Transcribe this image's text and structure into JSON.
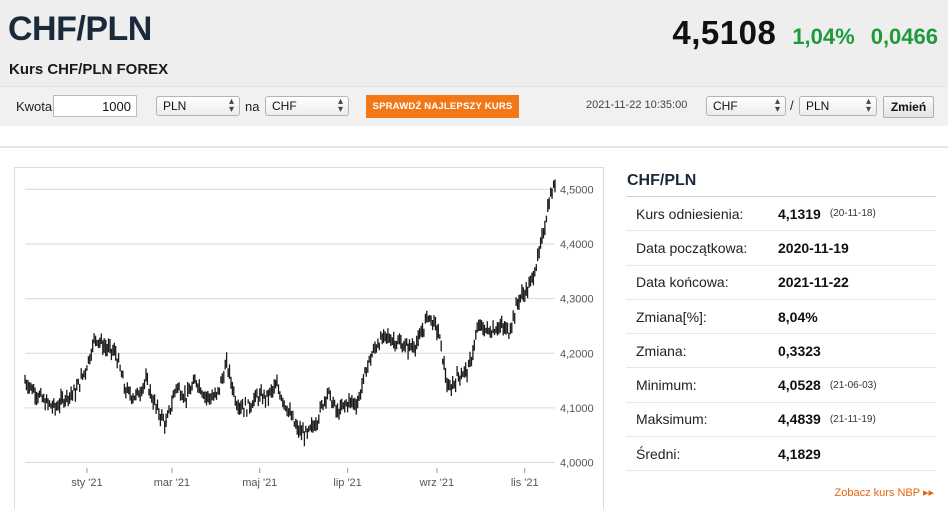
{
  "header": {
    "pair": "CHF/PLN",
    "subtitle": "Kurs CHF/PLN FOREX",
    "rate": "4,5108",
    "change_pct": "1,04%",
    "change_abs": "0,0466"
  },
  "converter": {
    "amount_label": "Kwota",
    "amount_value": "1000",
    "from_currency": "PLN",
    "na_label": "na",
    "to_currency": "CHF",
    "best_rate_button": "SPRAWDŹ NAJLEPSZY KURS",
    "timestamp": "2021-11-22 10:35:00",
    "pair_base": "CHF",
    "pair_sep": "/",
    "pair_quote": "PLN",
    "change_button": "Zmień"
  },
  "stats": {
    "title": "CHF/PLN",
    "rows": [
      {
        "label": "Kurs odniesienia:",
        "value": "4,1319",
        "date": "(20-11-18)"
      },
      {
        "label": "Data początkowa:",
        "value": "2020-11-19",
        "date": ""
      },
      {
        "label": "Data końcowa:",
        "value": "2021-11-22",
        "date": ""
      },
      {
        "label": "Zmiana[%]:",
        "value": "8,04%",
        "date": ""
      },
      {
        "label": "Zmiana:",
        "value": "0,3323",
        "date": ""
      },
      {
        "label": "Minimum:",
        "value": "4,0528",
        "date": "(21-06-03)"
      },
      {
        "label": "Maksimum:",
        "value": "4,4839",
        "date": "(21-11-19)"
      },
      {
        "label": "Średni:",
        "value": "4,1829",
        "date": ""
      }
    ],
    "nbp_link": "Zobacz kurs NBP ▸▸"
  },
  "colors": {
    "accent_orange": "#f07818",
    "positive_green": "#1e9a3c",
    "title_navy": "#1a2a3a"
  },
  "chart_data": {
    "type": "line",
    "subtype": "candlestick",
    "x_tick_labels": [
      "sty '21",
      "mar '21",
      "maj '21",
      "lip '21",
      "wrz '21",
      "lis '21"
    ],
    "x_tick_dates": [
      "2021-01-01",
      "2021-03-01",
      "2021-05-01",
      "2021-07-01",
      "2021-09-01",
      "2021-11-01"
    ],
    "y_tick_labels": [
      "4,0000",
      "4,1000",
      "4,2000",
      "4,3000",
      "4,4000",
      "4,5000"
    ],
    "y_ticks": [
      4.0,
      4.1,
      4.2,
      4.3,
      4.4,
      4.5
    ],
    "ylim": [
      3.99,
      4.53
    ],
    "xlim": [
      "2020-11-19",
      "2021-11-22"
    ],
    "grid": true,
    "series": [
      {
        "x": [
          "2020-11-19",
          "2020-11-26",
          "2020-12-03",
          "2020-12-10",
          "2020-12-17",
          "2020-12-24",
          "2020-12-31",
          "2021-01-07",
          "2021-01-14",
          "2021-01-21",
          "2021-01-28",
          "2021-02-04",
          "2021-02-11",
          "2021-02-18",
          "2021-02-25",
          "2021-03-04",
          "2021-03-11",
          "2021-03-18",
          "2021-03-25",
          "2021-04-01",
          "2021-04-08",
          "2021-04-15",
          "2021-04-22",
          "2021-04-29",
          "2021-05-06",
          "2021-05-13",
          "2021-05-20",
          "2021-05-27",
          "2021-06-03",
          "2021-06-10",
          "2021-06-17",
          "2021-06-24",
          "2021-07-01",
          "2021-07-08",
          "2021-07-15",
          "2021-07-22",
          "2021-07-29",
          "2021-08-05",
          "2021-08-12",
          "2021-08-19",
          "2021-08-26",
          "2021-09-02",
          "2021-09-09",
          "2021-09-16",
          "2021-09-23",
          "2021-09-30",
          "2021-10-07",
          "2021-10-14",
          "2021-10-21",
          "2021-10-28",
          "2021-11-04",
          "2021-11-11",
          "2021-11-18",
          "2021-11-22"
        ],
        "values": [
          4.15,
          4.13,
          4.11,
          4.1,
          4.12,
          4.13,
          4.17,
          4.23,
          4.21,
          4.2,
          4.13,
          4.12,
          4.15,
          4.1,
          4.07,
          4.14,
          4.12,
          4.15,
          4.12,
          4.12,
          4.18,
          4.11,
          4.1,
          4.12,
          4.12,
          4.14,
          4.1,
          4.06,
          4.05,
          4.08,
          4.13,
          4.09,
          4.11,
          4.11,
          4.18,
          4.22,
          4.23,
          4.22,
          4.21,
          4.22,
          4.27,
          4.24,
          4.13,
          4.16,
          4.17,
          4.25,
          4.24,
          4.25,
          4.24,
          4.3,
          4.32,
          4.38,
          4.48,
          4.51
        ]
      }
    ]
  }
}
